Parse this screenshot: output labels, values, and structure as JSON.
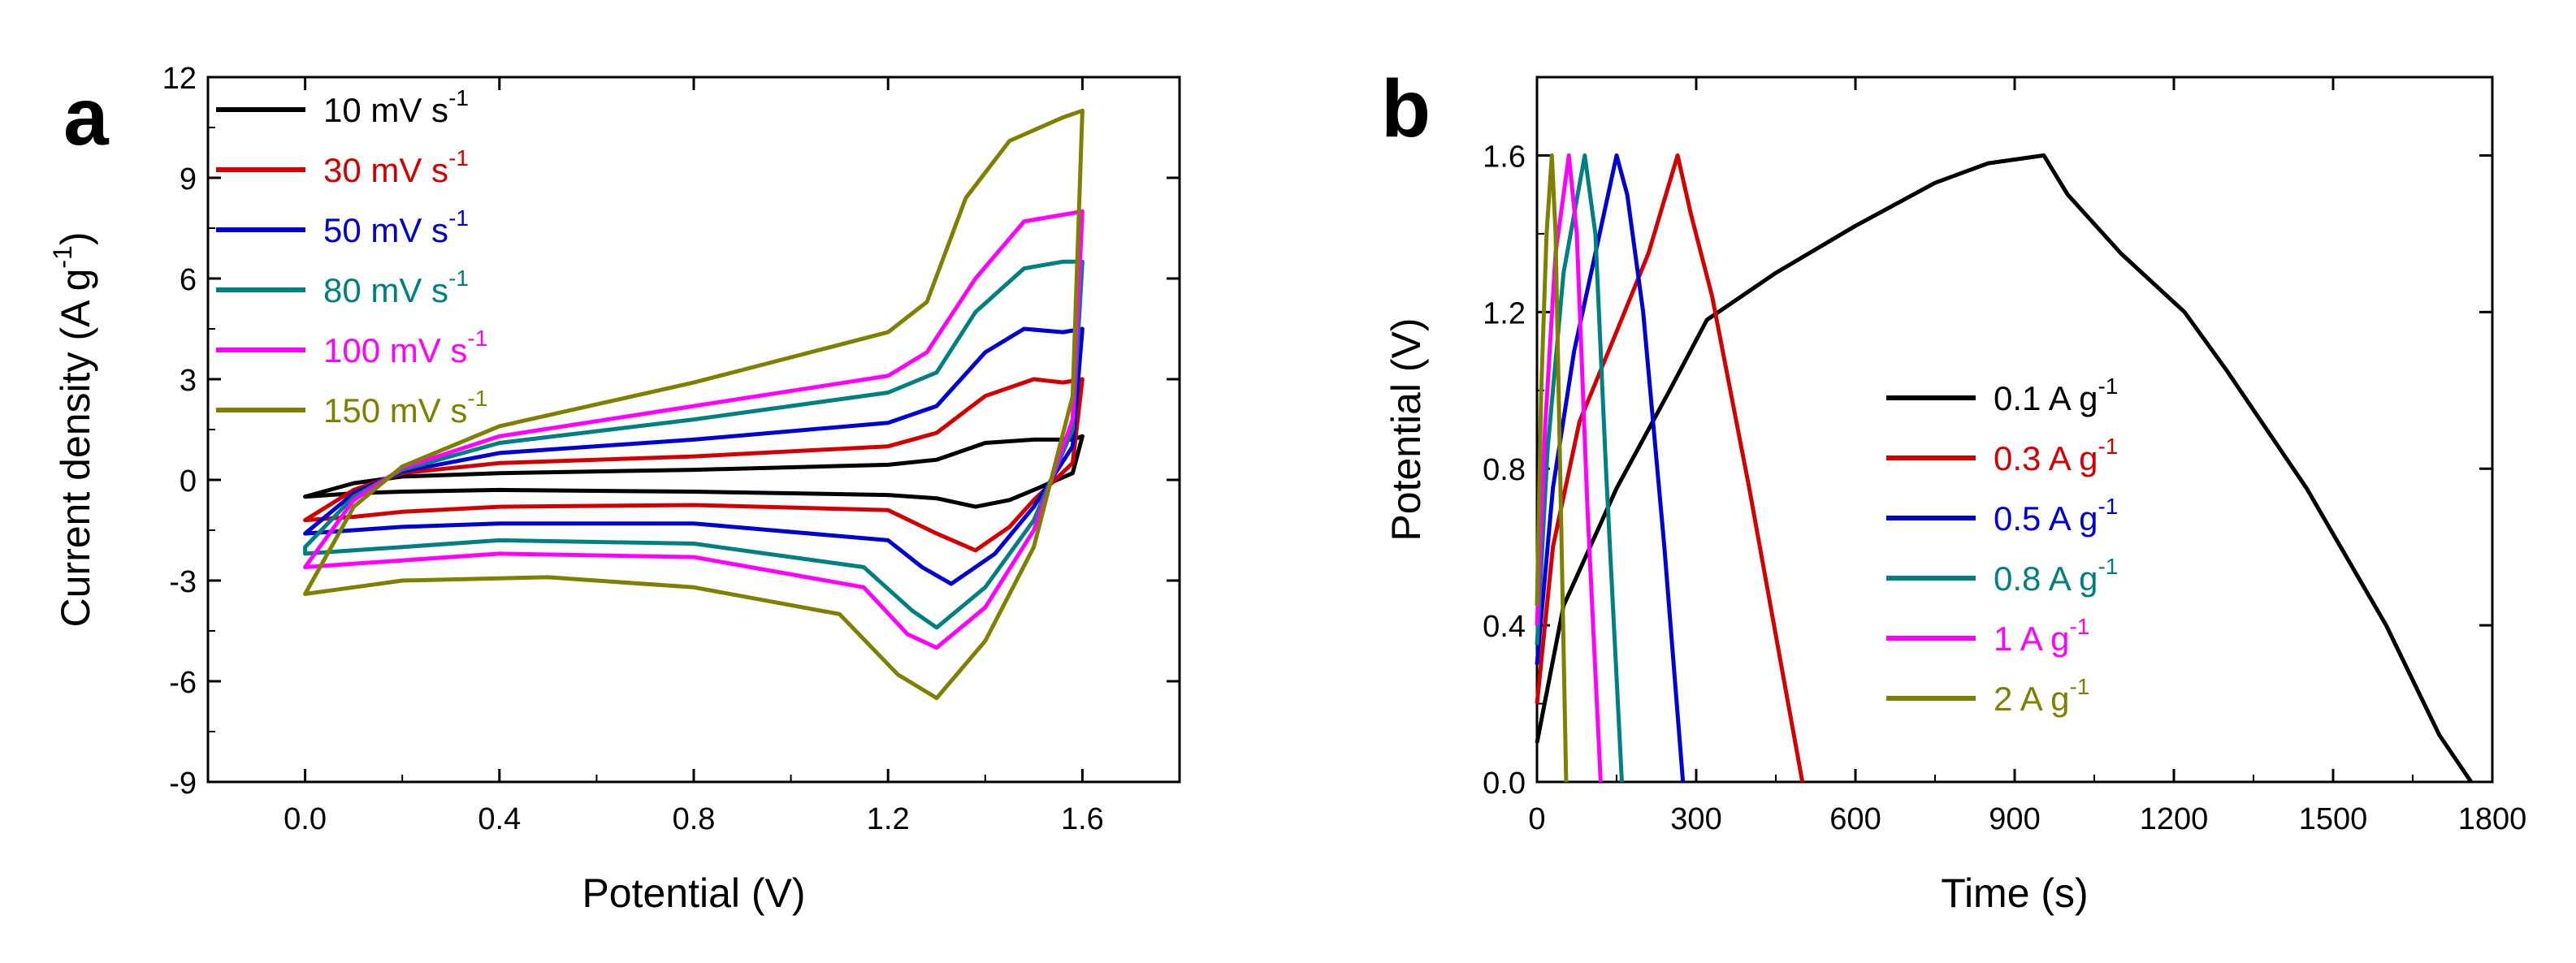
{
  "panels": [
    {
      "label": "a"
    },
    {
      "label": "b"
    }
  ],
  "chart_data": [
    {
      "type": "line",
      "panel": "a",
      "xlabel": "Potential (V)",
      "ylabel": "Current density (A g",
      "ylabel_sup": "-1",
      "ylabel_end": ")",
      "xlim": [
        -0.2,
        1.8
      ],
      "ylim": [
        -9,
        12
      ],
      "xticks": [
        0.0,
        0.4,
        0.8,
        1.2,
        1.6
      ],
      "xtick_labels": [
        "0.0",
        "0.4",
        "0.8",
        "1.2",
        "1.6"
      ],
      "yticks": [
        -9,
        -6,
        -3,
        0,
        3,
        6,
        9,
        12
      ],
      "ytick_labels": [
        "-9",
        "-6",
        "-3",
        "0",
        "3",
        "6",
        "9",
        "12"
      ],
      "legend_position": "top-left",
      "series": [
        {
          "name": "10 mV s",
          "sup": "-1",
          "color": "#000000",
          "upper": [
            [
              0,
              -0.5
            ],
            [
              0.1,
              -0.1
            ],
            [
              0.2,
              0.1
            ],
            [
              0.4,
              0.2
            ],
            [
              0.8,
              0.3
            ],
            [
              1.2,
              0.45
            ],
            [
              1.3,
              0.6
            ],
            [
              1.4,
              1.1
            ],
            [
              1.5,
              1.2
            ],
            [
              1.58,
              1.2
            ],
            [
              1.6,
              1.3
            ]
          ],
          "lower": [
            [
              1.6,
              1.3
            ],
            [
              1.58,
              0.2
            ],
            [
              1.5,
              -0.3
            ],
            [
              1.45,
              -0.6
            ],
            [
              1.38,
              -0.8
            ],
            [
              1.3,
              -0.55
            ],
            [
              1.2,
              -0.45
            ],
            [
              0.8,
              -0.35
            ],
            [
              0.4,
              -0.3
            ],
            [
              0.2,
              -0.35
            ],
            [
              0.1,
              -0.4
            ],
            [
              0,
              -0.5
            ]
          ]
        },
        {
          "name": "30 mV s",
          "sup": "-1",
          "color": "#d40000",
          "upper": [
            [
              0,
              -1.2
            ],
            [
              0.1,
              -0.3
            ],
            [
              0.2,
              0.2
            ],
            [
              0.4,
              0.5
            ],
            [
              0.8,
              0.7
            ],
            [
              1.2,
              1.0
            ],
            [
              1.3,
              1.4
            ],
            [
              1.4,
              2.5
            ],
            [
              1.5,
              3.0
            ],
            [
              1.56,
              2.9
            ],
            [
              1.6,
              3.0
            ]
          ],
          "lower": [
            [
              1.6,
              3.0
            ],
            [
              1.58,
              0.5
            ],
            [
              1.5,
              -0.6
            ],
            [
              1.45,
              -1.4
            ],
            [
              1.38,
              -2.1
            ],
            [
              1.3,
              -1.6
            ],
            [
              1.2,
              -0.9
            ],
            [
              0.8,
              -0.75
            ],
            [
              0.4,
              -0.8
            ],
            [
              0.2,
              -0.95
            ],
            [
              0.1,
              -1.1
            ],
            [
              0,
              -1.2
            ]
          ]
        },
        {
          "name": "50 mV s",
          "sup": "-1",
          "color": "#0000d4",
          "upper": [
            [
              0,
              -1.6
            ],
            [
              0.1,
              -0.4
            ],
            [
              0.2,
              0.25
            ],
            [
              0.4,
              0.8
            ],
            [
              0.8,
              1.2
            ],
            [
              1.2,
              1.7
            ],
            [
              1.3,
              2.2
            ],
            [
              1.4,
              3.8
            ],
            [
              1.48,
              4.5
            ],
            [
              1.56,
              4.4
            ],
            [
              1.6,
              4.5
            ]
          ],
          "lower": [
            [
              1.6,
              4.5
            ],
            [
              1.58,
              1.0
            ],
            [
              1.5,
              -0.8
            ],
            [
              1.42,
              -2.2
            ],
            [
              1.33,
              -3.1
            ],
            [
              1.27,
              -2.6
            ],
            [
              1.2,
              -1.8
            ],
            [
              0.8,
              -1.3
            ],
            [
              0.4,
              -1.3
            ],
            [
              0.2,
              -1.4
            ],
            [
              0.1,
              -1.5
            ],
            [
              0,
              -1.6
            ]
          ]
        },
        {
          "name": "80 mV s",
          "sup": "-1",
          "color": "#008080",
          "upper": [
            [
              0,
              -2.0
            ],
            [
              0.1,
              -0.5
            ],
            [
              0.2,
              0.3
            ],
            [
              0.4,
              1.1
            ],
            [
              0.8,
              1.8
            ],
            [
              1.2,
              2.6
            ],
            [
              1.3,
              3.2
            ],
            [
              1.38,
              5.0
            ],
            [
              1.48,
              6.3
            ],
            [
              1.56,
              6.5
            ],
            [
              1.6,
              6.5
            ]
          ],
          "lower": [
            [
              1.6,
              6.5
            ],
            [
              1.58,
              1.5
            ],
            [
              1.5,
              -1.2
            ],
            [
              1.4,
              -3.2
            ],
            [
              1.3,
              -4.4
            ],
            [
              1.25,
              -3.9
            ],
            [
              1.15,
              -2.6
            ],
            [
              0.8,
              -1.9
            ],
            [
              0.4,
              -1.8
            ],
            [
              0.2,
              -2.0
            ],
            [
              0.1,
              -2.1
            ],
            [
              0,
              -2.2
            ]
          ]
        },
        {
          "name": "100  mV s",
          "sup": "-1",
          "color": "#ff00ff",
          "upper": [
            [
              0,
              -2.6
            ],
            [
              0.1,
              -0.6
            ],
            [
              0.2,
              0.35
            ],
            [
              0.4,
              1.3
            ],
            [
              0.8,
              2.2
            ],
            [
              1.2,
              3.1
            ],
            [
              1.28,
              3.8
            ],
            [
              1.38,
              6.0
            ],
            [
              1.48,
              7.7
            ],
            [
              1.56,
              7.9
            ],
            [
              1.6,
              8.0
            ]
          ],
          "lower": [
            [
              1.6,
              8.0
            ],
            [
              1.58,
              1.8
            ],
            [
              1.5,
              -1.5
            ],
            [
              1.4,
              -3.8
            ],
            [
              1.3,
              -5.0
            ],
            [
              1.24,
              -4.6
            ],
            [
              1.15,
              -3.2
            ],
            [
              0.8,
              -2.3
            ],
            [
              0.4,
              -2.2
            ],
            [
              0.2,
              -2.4
            ],
            [
              0.1,
              -2.5
            ],
            [
              0,
              -2.6
            ]
          ]
        },
        {
          "name": "150 mV s",
          "sup": "-1",
          "color": "#808000",
          "upper": [
            [
              0,
              -3.4
            ],
            [
              0.1,
              -0.8
            ],
            [
              0.2,
              0.4
            ],
            [
              0.4,
              1.6
            ],
            [
              0.8,
              2.9
            ],
            [
              1.2,
              4.4
            ],
            [
              1.28,
              5.3
            ],
            [
              1.36,
              8.4
            ],
            [
              1.45,
              10.1
            ],
            [
              1.56,
              10.8
            ],
            [
              1.6,
              11.0
            ]
          ],
          "lower": [
            [
              1.6,
              11.0
            ],
            [
              1.58,
              2.5
            ],
            [
              1.5,
              -2.0
            ],
            [
              1.4,
              -4.8
            ],
            [
              1.3,
              -6.5
            ],
            [
              1.22,
              -5.8
            ],
            [
              1.1,
              -4.0
            ],
            [
              0.8,
              -3.2
            ],
            [
              0.5,
              -2.9
            ],
            [
              0.2,
              -3.0
            ],
            [
              0.1,
              -3.2
            ],
            [
              0,
              -3.4
            ]
          ]
        }
      ]
    },
    {
      "type": "line",
      "panel": "b",
      "xlabel": "Time (s)",
      "ylabel": "Potential (V)",
      "xlim": [
        0,
        1800
      ],
      "ylim": [
        0,
        1.8
      ],
      "xticks": [
        0,
        300,
        600,
        900,
        1200,
        1500,
        1800
      ],
      "xtick_labels": [
        "0",
        "300",
        "600",
        "900",
        "1200",
        "1500",
        "1800"
      ],
      "yticks": [
        0,
        0.4,
        0.8,
        1.2,
        1.6
      ],
      "ytick_labels": [
        "0.0",
        "0.4",
        "0.8",
        "1.2",
        "1.6"
      ],
      "legend_position": "center-right",
      "series": [
        {
          "name": "0.1 A g",
          "sup": "-1",
          "color": "#000000",
          "points": [
            [
              0,
              0.1
            ],
            [
              50,
              0.45
            ],
            [
              150,
              0.75
            ],
            [
              250,
              1.0
            ],
            [
              320,
              1.18
            ],
            [
              450,
              1.3
            ],
            [
              600,
              1.42
            ],
            [
              750,
              1.53
            ],
            [
              850,
              1.58
            ],
            [
              955,
              1.6
            ],
            [
              1000,
              1.5
            ],
            [
              1100,
              1.35
            ],
            [
              1220,
              1.2
            ],
            [
              1300,
              1.05
            ],
            [
              1450,
              0.75
            ],
            [
              1600,
              0.4
            ],
            [
              1700,
              0.12
            ],
            [
              1760,
              0.0
            ]
          ]
        },
        {
          "name": "0.3 A g",
          "sup": "-1",
          "color": "#d40000",
          "points": [
            [
              0,
              0.2
            ],
            [
              30,
              0.6
            ],
            [
              80,
              0.92
            ],
            [
              150,
              1.15
            ],
            [
              210,
              1.35
            ],
            [
              265,
              1.6
            ],
            [
              290,
              1.45
            ],
            [
              330,
              1.24
            ],
            [
              400,
              0.75
            ],
            [
              460,
              0.3
            ],
            [
              500,
              0.0
            ]
          ]
        },
        {
          "name": "0.5 A g",
          "sup": "-1",
          "color": "#0000d4",
          "points": [
            [
              0,
              0.3
            ],
            [
              30,
              0.75
            ],
            [
              70,
              1.1
            ],
            [
              110,
              1.35
            ],
            [
              150,
              1.6
            ],
            [
              170,
              1.5
            ],
            [
              200,
              1.2
            ],
            [
              240,
              0.6
            ],
            [
              275,
              0.0
            ]
          ]
        },
        {
          "name": "0.8 A g",
          "sup": "-1",
          "color": "#008080",
          "points": [
            [
              0,
              0.35
            ],
            [
              20,
              0.85
            ],
            [
              50,
              1.3
            ],
            [
              90,
              1.6
            ],
            [
              110,
              1.4
            ],
            [
              130,
              0.8
            ],
            [
              160,
              0.0
            ]
          ]
        },
        {
          "name": "1 A g",
          "sup": "-1",
          "color": "#ff00ff",
          "points": [
            [
              0,
              0.4
            ],
            [
              15,
              0.9
            ],
            [
              35,
              1.35
            ],
            [
              60,
              1.6
            ],
            [
              75,
              1.4
            ],
            [
              95,
              0.7
            ],
            [
              120,
              0.0
            ]
          ]
        },
        {
          "name": "2 A g",
          "sup": "-1",
          "color": "#808000",
          "points": [
            [
              0,
              0.45
            ],
            [
              8,
              1.0
            ],
            [
              18,
              1.4
            ],
            [
              28,
              1.6
            ],
            [
              35,
              1.4
            ],
            [
              45,
              0.7
            ],
            [
              55,
              0.0
            ]
          ]
        }
      ]
    }
  ]
}
